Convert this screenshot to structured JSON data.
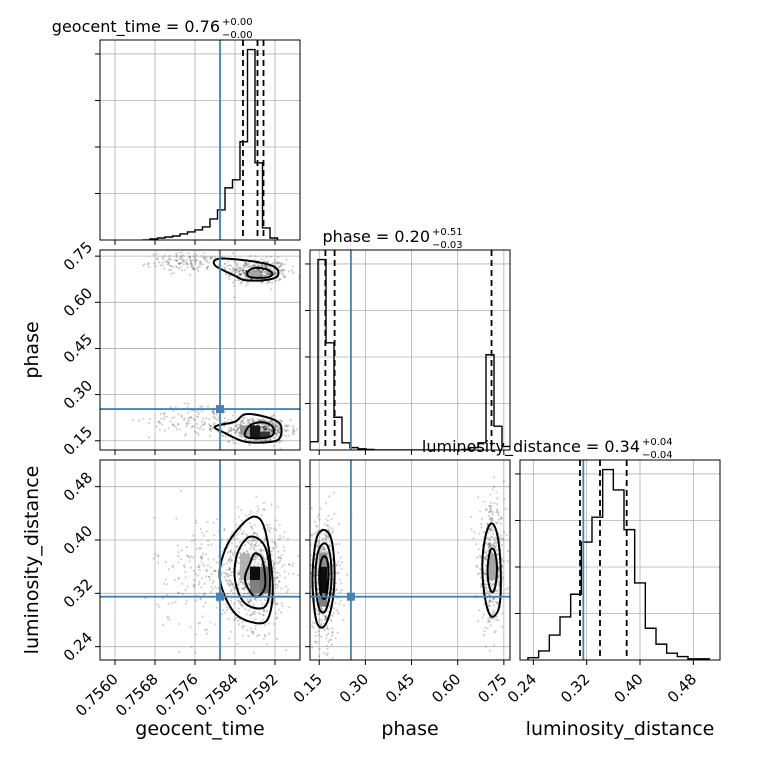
{
  "chart_data": {
    "type": "corner",
    "parameters": [
      "geocent_time",
      "phase",
      "luminosity_distance"
    ],
    "axes": {
      "geocent_time": {
        "label": "geocent_time",
        "range": [
          0.7557,
          0.7597
        ],
        "ticks": [
          0.756,
          0.7568,
          0.7576,
          0.7584,
          0.7592
        ],
        "tick_labels": [
          "0.7560",
          "0.7568",
          "0.7576",
          "0.7584",
          "0.7592"
        ]
      },
      "phase": {
        "label": "phase",
        "range": [
          0.12,
          0.77
        ],
        "ticks": [
          0.15,
          0.3,
          0.45,
          0.6,
          0.75
        ],
        "tick_labels": [
          "0.15",
          "0.30",
          "0.45",
          "0.60",
          "0.75"
        ]
      },
      "luminosity_distance": {
        "label": "luminosity_distance",
        "range": [
          0.22,
          0.52
        ],
        "ticks": [
          0.24,
          0.32,
          0.4,
          0.48
        ],
        "tick_labels": [
          "0.24",
          "0.32",
          "0.40",
          "0.48"
        ]
      }
    },
    "titles": {
      "geocent_time": {
        "text": "geocent_time = 0.76",
        "plus": "+0.00",
        "minus": "−0.00"
      },
      "phase": {
        "text": "phase = 0.20",
        "plus": "+0.51",
        "minus": "−0.03"
      },
      "luminosity_distance": {
        "text": "luminosity_distance = 0.34",
        "plus": "+0.04",
        "minus": "−0.04"
      }
    },
    "truths": {
      "geocent_time": 0.7581,
      "phase": 0.253,
      "luminosity_distance": 0.315
    },
    "quantiles": {
      "geocent_time": [
        0.75856,
        0.75885,
        0.75897
      ],
      "phase": [
        0.17,
        0.2,
        0.71
      ],
      "luminosity_distance": [
        0.31,
        0.34,
        0.38
      ]
    },
    "histograms": {
      "geocent_time": {
        "edges": [
          0.75655,
          0.7567,
          0.75685,
          0.757,
          0.75715,
          0.7573,
          0.75745,
          0.7576,
          0.75775,
          0.7579,
          0.75805,
          0.7582,
          0.75835,
          0.7585,
          0.75865,
          0.7588,
          0.75895,
          0.7591,
          0.75925
        ],
        "counts": [
          0,
          1,
          2,
          3,
          4,
          6,
          8,
          10,
          13,
          21,
          30,
          52,
          60,
          98,
          190,
          77,
          12,
          2
        ]
      },
      "phase": {
        "edges": [
          0.12,
          0.146,
          0.172,
          0.198,
          0.224,
          0.25,
          0.276,
          0.302,
          0.328,
          0.354,
          0.38,
          0.406,
          0.432,
          0.458,
          0.484,
          0.51,
          0.536,
          0.562,
          0.588,
          0.614,
          0.64,
          0.666,
          0.692,
          0.718,
          0.744,
          0.77
        ],
        "counts": [
          14,
          320,
          180,
          55,
          12,
          4,
          2,
          1,
          0,
          0,
          0,
          0,
          0,
          0,
          0,
          0,
          0,
          0,
          0,
          1,
          4,
          12,
          160,
          40,
          6
        ]
      },
      "luminosity_distance": {
        "edges": [
          0.232,
          0.248,
          0.264,
          0.28,
          0.296,
          0.312,
          0.328,
          0.344,
          0.36,
          0.376,
          0.392,
          0.408,
          0.424,
          0.44,
          0.456,
          0.472,
          0.488,
          0.504
        ],
        "counts": [
          2,
          8,
          22,
          38,
          58,
          104,
          126,
          168,
          150,
          115,
          68,
          28,
          14,
          6,
          3,
          1,
          1
        ]
      }
    },
    "scatter_clusters": [
      {
        "x": "geocent_time",
        "y": "phase",
        "cx": 0.75885,
        "cy": 0.7,
        "sx": 0.0003,
        "sy": 0.02,
        "n": 420
      },
      {
        "x": "geocent_time",
        "y": "phase",
        "cx": 0.7575,
        "cy": 0.73,
        "sx": 0.0004,
        "sy": 0.015,
        "n": 140
      },
      {
        "x": "geocent_time",
        "y": "phase",
        "cx": 0.7589,
        "cy": 0.185,
        "sx": 0.0003,
        "sy": 0.02,
        "n": 480
      },
      {
        "x": "geocent_time",
        "y": "phase",
        "cx": 0.7577,
        "cy": 0.22,
        "sx": 0.0005,
        "sy": 0.025,
        "n": 140
      },
      {
        "x": "geocent_time",
        "y": "luminosity_distance",
        "cx": 0.7588,
        "cy": 0.35,
        "sx": 0.0003,
        "sy": 0.04,
        "n": 650
      },
      {
        "x": "geocent_time",
        "y": "luminosity_distance",
        "cx": 0.758,
        "cy": 0.35,
        "sx": 0.0006,
        "sy": 0.045,
        "n": 260
      },
      {
        "x": "phase",
        "y": "luminosity_distance",
        "cx": 0.165,
        "cy": 0.34,
        "sx": 0.025,
        "sy": 0.045,
        "n": 600
      },
      {
        "x": "phase",
        "y": "luminosity_distance",
        "cx": 0.71,
        "cy": 0.36,
        "sx": 0.022,
        "sy": 0.045,
        "n": 420
      }
    ],
    "contours": [
      {
        "x": "geocent_time",
        "y": "phase",
        "points": [
          [
            0.7584,
            0.686
          ],
          [
            0.7586,
            0.672
          ],
          [
            0.759,
            0.672
          ],
          [
            0.75925,
            0.685
          ],
          [
            0.7592,
            0.714
          ],
          [
            0.7588,
            0.732
          ],
          [
            0.7581,
            0.742
          ],
          [
            0.758,
            0.72
          ]
        ]
      },
      {
        "x": "geocent_time",
        "y": "phase",
        "points": [
          [
            0.7587,
            0.682
          ],
          [
            0.759,
            0.68
          ],
          [
            0.75915,
            0.69
          ],
          [
            0.75905,
            0.706
          ],
          [
            0.7588,
            0.712
          ],
          [
            0.75865,
            0.698
          ]
        ]
      },
      {
        "x": "geocent_time",
        "y": "phase",
        "points": [
          [
            0.7582,
            0.175
          ],
          [
            0.7586,
            0.147
          ],
          [
            0.7591,
            0.146
          ],
          [
            0.7593,
            0.16
          ],
          [
            0.7593,
            0.205
          ],
          [
            0.759,
            0.228
          ],
          [
            0.7586,
            0.236
          ],
          [
            0.7584,
            0.212
          ],
          [
            0.758,
            0.196
          ]
        ]
      },
      {
        "x": "geocent_time",
        "y": "phase",
        "points": [
          [
            0.7586,
            0.165
          ],
          [
            0.7589,
            0.158
          ],
          [
            0.75915,
            0.168
          ],
          [
            0.75915,
            0.196
          ],
          [
            0.75895,
            0.21
          ],
          [
            0.7587,
            0.2
          ]
        ]
      },
      {
        "x": "geocent_time",
        "y": "luminosity_distance",
        "points": [
          [
            0.7581,
            0.34
          ],
          [
            0.7584,
            0.29
          ],
          [
            0.7589,
            0.275
          ],
          [
            0.7591,
            0.29
          ],
          [
            0.75915,
            0.34
          ],
          [
            0.759,
            0.415
          ],
          [
            0.7588,
            0.435
          ],
          [
            0.7585,
            0.42
          ],
          [
            0.7582,
            0.385
          ]
        ]
      },
      {
        "x": "geocent_time",
        "y": "luminosity_distance",
        "points": [
          [
            0.7584,
            0.34
          ],
          [
            0.7586,
            0.305
          ],
          [
            0.759,
            0.3
          ],
          [
            0.7591,
            0.34
          ],
          [
            0.759,
            0.39
          ],
          [
            0.7587,
            0.405
          ],
          [
            0.75845,
            0.38
          ]
        ]
      },
      {
        "x": "geocent_time",
        "y": "luminosity_distance",
        "points": [
          [
            0.7586,
            0.34
          ],
          [
            0.7588,
            0.315
          ],
          [
            0.759,
            0.33
          ],
          [
            0.75895,
            0.37
          ],
          [
            0.7588,
            0.38
          ],
          [
            0.7587,
            0.365
          ]
        ]
      },
      {
        "x": "phase",
        "y": "luminosity_distance",
        "points": [
          [
            0.128,
            0.34
          ],
          [
            0.14,
            0.28
          ],
          [
            0.165,
            0.27
          ],
          [
            0.19,
            0.3
          ],
          [
            0.2,
            0.35
          ],
          [
            0.19,
            0.4
          ],
          [
            0.165,
            0.415
          ],
          [
            0.14,
            0.4
          ]
        ]
      },
      {
        "x": "phase",
        "y": "luminosity_distance",
        "points": [
          [
            0.138,
            0.34
          ],
          [
            0.148,
            0.3
          ],
          [
            0.167,
            0.292
          ],
          [
            0.184,
            0.315
          ],
          [
            0.19,
            0.35
          ],
          [
            0.182,
            0.385
          ],
          [
            0.165,
            0.395
          ],
          [
            0.145,
            0.38
          ]
        ]
      },
      {
        "x": "phase",
        "y": "luminosity_distance",
        "points": [
          [
            0.15,
            0.34
          ],
          [
            0.158,
            0.315
          ],
          [
            0.172,
            0.315
          ],
          [
            0.18,
            0.345
          ],
          [
            0.176,
            0.37
          ],
          [
            0.163,
            0.375
          ],
          [
            0.153,
            0.362
          ]
        ]
      },
      {
        "x": "phase",
        "y": "luminosity_distance",
        "points": [
          [
            0.68,
            0.36
          ],
          [
            0.69,
            0.31
          ],
          [
            0.71,
            0.285
          ],
          [
            0.735,
            0.3
          ],
          [
            0.74,
            0.35
          ],
          [
            0.73,
            0.405
          ],
          [
            0.71,
            0.425
          ],
          [
            0.69,
            0.405
          ]
        ]
      },
      {
        "x": "phase",
        "y": "luminosity_distance",
        "points": [
          [
            0.697,
            0.355
          ],
          [
            0.703,
            0.33
          ],
          [
            0.715,
            0.322
          ],
          [
            0.725,
            0.338
          ],
          [
            0.727,
            0.365
          ],
          [
            0.718,
            0.385
          ],
          [
            0.705,
            0.383
          ]
        ]
      }
    ],
    "density_cells": [
      {
        "x": "geocent_time",
        "y": "phase",
        "x0": 0.7587,
        "x1": 0.7589,
        "y0": 0.16,
        "y1": 0.2,
        "level": 0.9
      },
      {
        "x": "geocent_time",
        "y": "phase",
        "x0": 0.7589,
        "x1": 0.7591,
        "y0": 0.16,
        "y1": 0.18,
        "level": 0.8
      },
      {
        "x": "geocent_time",
        "y": "phase",
        "x0": 0.7585,
        "x1": 0.7587,
        "y0": 0.17,
        "y1": 0.2,
        "level": 0.4
      },
      {
        "x": "geocent_time",
        "y": "phase",
        "x0": 0.7587,
        "x1": 0.7589,
        "y0": 0.68,
        "y1": 0.7,
        "level": 0.35
      },
      {
        "x": "geocent_time",
        "y": "luminosity_distance",
        "x0": 0.7587,
        "x1": 0.7589,
        "y0": 0.34,
        "y1": 0.36,
        "level": 0.95
      },
      {
        "x": "geocent_time",
        "y": "luminosity_distance",
        "x0": 0.7587,
        "x1": 0.7589,
        "y0": 0.32,
        "y1": 0.34,
        "level": 0.5
      },
      {
        "x": "geocent_time",
        "y": "luminosity_distance",
        "x0": 0.7589,
        "x1": 0.7591,
        "y0": 0.32,
        "y1": 0.36,
        "level": 0.55
      },
      {
        "x": "geocent_time",
        "y": "luminosity_distance",
        "x0": 0.7585,
        "x1": 0.7587,
        "y0": 0.34,
        "y1": 0.38,
        "level": 0.3
      },
      {
        "x": "phase",
        "y": "luminosity_distance",
        "x0": 0.15,
        "x1": 0.176,
        "y0": 0.32,
        "y1": 0.36,
        "level": 0.95
      },
      {
        "x": "phase",
        "y": "luminosity_distance",
        "x0": 0.15,
        "x1": 0.176,
        "y0": 0.3,
        "y1": 0.32,
        "level": 0.5
      },
      {
        "x": "phase",
        "y": "luminosity_distance",
        "x0": 0.15,
        "x1": 0.176,
        "y0": 0.36,
        "y1": 0.38,
        "level": 0.45
      },
      {
        "x": "phase",
        "y": "luminosity_distance",
        "x0": 0.7,
        "x1": 0.726,
        "y0": 0.34,
        "y1": 0.38,
        "level": 0.35
      }
    ]
  }
}
